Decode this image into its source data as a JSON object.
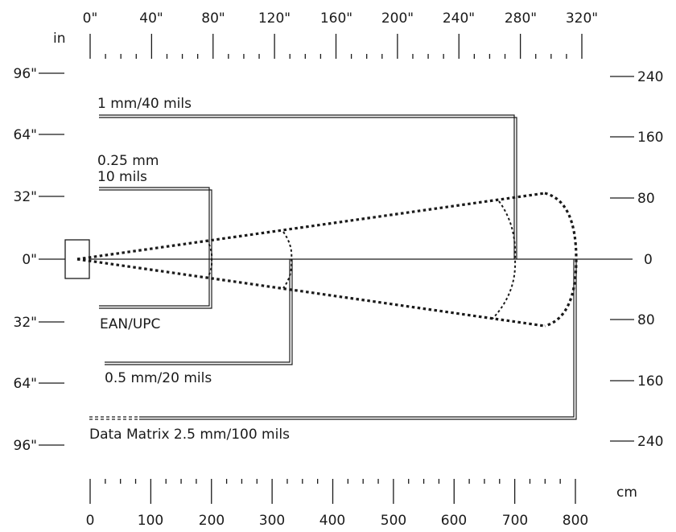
{
  "units": {
    "inches": "in",
    "centimeters": "cm"
  },
  "top_scale_labels": [
    "0\"",
    "40\"",
    "80\"",
    "120\"",
    "160\"",
    "200\"",
    "240\"",
    "280\"",
    "320\""
  ],
  "bottom_scale_labels": [
    "0",
    "100",
    "200",
    "300",
    "400",
    "500",
    "600",
    "700",
    "800"
  ],
  "left_scale_labels": [
    "96\"",
    "64\"",
    "32\"",
    "0\"",
    "32\"",
    "64\"",
    "96\""
  ],
  "right_scale_labels": [
    "240",
    "160",
    "80",
    "0",
    "80",
    "160",
    "240"
  ],
  "barcodes": [
    {
      "id": "1mm",
      "label_lines": [
        "1 mm/40 mils"
      ],
      "range_cm": [
        0,
        700
      ]
    },
    {
      "id": "025mm",
      "label_lines": [
        "0.25 mm",
        "10 mils"
      ],
      "range_cm": [
        0,
        200
      ]
    },
    {
      "id": "ean",
      "label_lines": [
        "EAN/UPC"
      ],
      "range_cm": [
        0,
        200
      ]
    },
    {
      "id": "05mm",
      "label_lines": [
        "0.5 mm/20 mils"
      ],
      "range_cm": [
        0,
        325
      ]
    },
    {
      "id": "dm",
      "label_lines": [
        "Data Matrix 2.5 mm/100 mils"
      ],
      "range_cm": [
        0,
        800
      ]
    }
  ]
}
